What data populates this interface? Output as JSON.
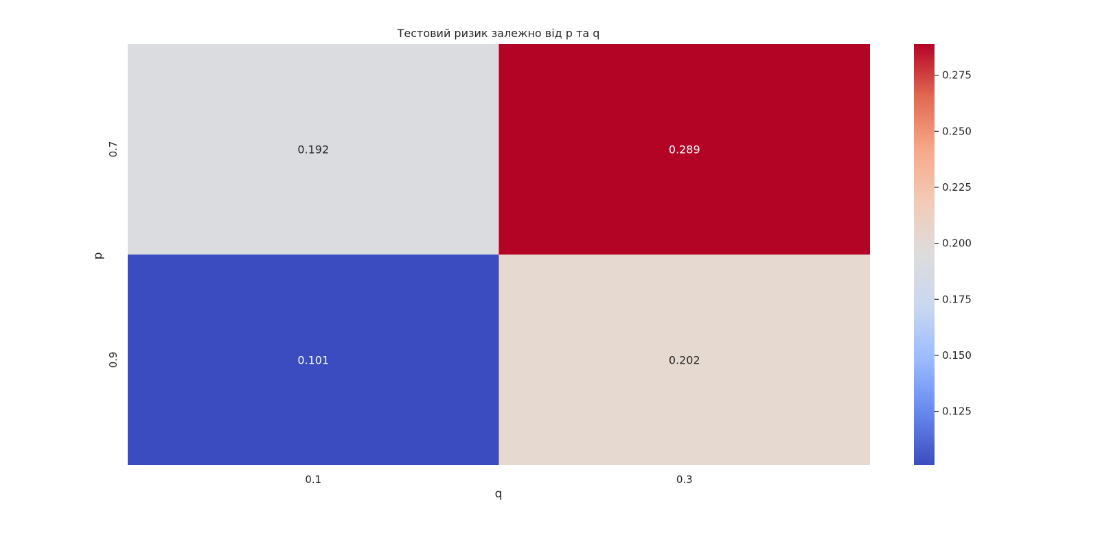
{
  "chart_data": {
    "type": "heatmap",
    "title": "Тестовий ризик залежно від p та q",
    "xlabel": "q",
    "ylabel": "p",
    "x_categories": [
      "0.1",
      "0.3"
    ],
    "y_categories": [
      "0.7",
      "0.9"
    ],
    "values": [
      [
        0.192,
        0.289
      ],
      [
        0.101,
        0.202
      ]
    ],
    "cell_labels": [
      [
        "0.192",
        "0.289"
      ],
      [
        "0.101",
        "0.202"
      ]
    ],
    "colormap": "coolwarm",
    "colorbar": {
      "vmin": 0.101,
      "vmax": 0.289,
      "ticks": [
        0.125,
        0.15,
        0.175,
        0.2,
        0.225,
        0.25,
        0.275
      ],
      "tick_labels": [
        "0.125",
        "0.150",
        "0.175",
        "0.200",
        "0.225",
        "0.250",
        "0.275"
      ]
    },
    "cell_colors": [
      [
        "#dadce0",
        "#b40426"
      ],
      [
        "#3b4cc0",
        "#e6d9cf"
      ]
    ],
    "colormap_stops": [
      "#3b4cc0",
      "#6788ee",
      "#9abbff",
      "#c9d7f0",
      "#dddcdc",
      "#f2cbb7",
      "#f7a889",
      "#e26952",
      "#b40426"
    ]
  }
}
